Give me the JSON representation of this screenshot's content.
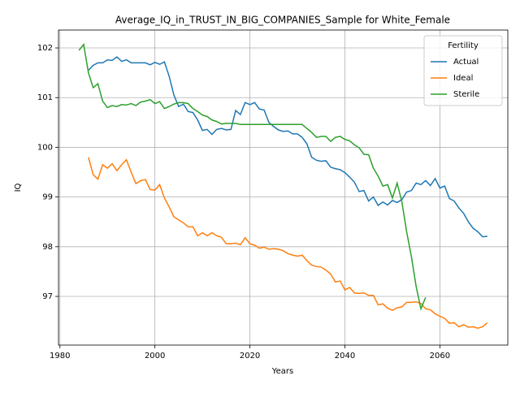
{
  "chart_data": {
    "type": "line",
    "title": "Average_IQ_in_TRUST_IN_BIG_COMPANIES_Sample for White_Female",
    "x_label": "Years",
    "y_label": "IQ",
    "legend_title": "Fertility",
    "legend_loc": "upper right",
    "grid": true,
    "xlim": [
      1979.7,
      2074.3
    ],
    "xticks": [
      1980,
      2000,
      2020,
      2040,
      2060
    ],
    "ylim": [
      96.02,
      102.36
    ],
    "yticks": [
      97,
      98,
      99,
      100,
      101,
      102
    ],
    "x": [
      1984,
      1985,
      1986,
      1987,
      1988,
      1989,
      1990,
      1991,
      1992,
      1993,
      1994,
      1995,
      1996,
      1997,
      1998,
      1999,
      2000,
      2001,
      2002,
      2003,
      2004,
      2005,
      2006,
      2007,
      2008,
      2009,
      2010,
      2011,
      2012,
      2013,
      2014,
      2015,
      2016,
      2017,
      2018,
      2019,
      2020,
      2021,
      2022,
      2023,
      2024,
      2025,
      2026,
      2027,
      2028,
      2029,
      2030,
      2031,
      2032,
      2033,
      2034,
      2035,
      2036,
      2037,
      2038,
      2039,
      2040,
      2041,
      2042,
      2043,
      2044,
      2045,
      2046,
      2047,
      2048,
      2049,
      2050,
      2051,
      2052,
      2053,
      2054,
      2055,
      2056,
      2057,
      2058,
      2059,
      2060,
      2061,
      2062,
      2063,
      2064,
      2065,
      2066,
      2067,
      2068,
      2069,
      2070
    ],
    "series": [
      {
        "name": "Actual",
        "color": "#1f77b4",
        "values": [
          null,
          null,
          101.55,
          101.65,
          101.7,
          101.7,
          101.76,
          101.75,
          101.82,
          101.73,
          101.76,
          101.7,
          101.7,
          101.7,
          101.7,
          101.66,
          101.71,
          101.67,
          101.72,
          101.43,
          101.05,
          100.82,
          100.87,
          100.72,
          100.7,
          100.55,
          100.34,
          100.36,
          100.26,
          100.36,
          100.38,
          100.35,
          100.36,
          100.74,
          100.66,
          100.9,
          100.86,
          100.9,
          100.77,
          100.75,
          100.5,
          100.42,
          100.35,
          100.32,
          100.33,
          100.27,
          100.27,
          100.2,
          100.07,
          99.8,
          99.74,
          99.72,
          99.73,
          99.6,
          99.57,
          99.55,
          99.49,
          99.4,
          99.3,
          99.11,
          99.13,
          98.92,
          99.0,
          98.83,
          98.9,
          98.84,
          98.93,
          98.89,
          98.95,
          99.1,
          99.13,
          99.28,
          99.25,
          99.33,
          99.23,
          99.37,
          99.18,
          99.22,
          98.97,
          98.92,
          98.78,
          98.67,
          98.5,
          98.37,
          98.3,
          98.2,
          98.21
        ]
      },
      {
        "name": "Ideal",
        "color": "#ff7f0e",
        "values": [
          null,
          null,
          99.8,
          99.45,
          99.36,
          99.65,
          99.58,
          99.67,
          99.53,
          99.65,
          99.75,
          99.5,
          99.27,
          99.33,
          99.35,
          99.15,
          99.14,
          99.25,
          98.98,
          98.8,
          98.6,
          98.54,
          98.48,
          98.4,
          98.4,
          98.22,
          98.28,
          98.22,
          98.28,
          98.22,
          98.19,
          98.06,
          98.06,
          98.07,
          98.04,
          98.18,
          98.06,
          98.03,
          97.97,
          97.99,
          97.95,
          97.96,
          97.95,
          97.92,
          97.86,
          97.83,
          97.81,
          97.83,
          97.72,
          97.63,
          97.6,
          97.59,
          97.53,
          97.45,
          97.29,
          97.31,
          97.13,
          97.18,
          97.07,
          97.06,
          97.07,
          97.02,
          97.02,
          96.83,
          96.85,
          96.76,
          96.72,
          96.77,
          96.79,
          96.88,
          96.88,
          96.89,
          96.86,
          96.75,
          96.73,
          96.65,
          96.6,
          96.56,
          96.46,
          96.47,
          96.39,
          96.43,
          96.38,
          96.39,
          96.36,
          96.39,
          96.47
        ]
      },
      {
        "name": "Sterile",
        "color": "#2ca02c",
        "values": [
          101.95,
          102.07,
          101.5,
          101.2,
          101.28,
          100.93,
          100.8,
          100.84,
          100.82,
          100.86,
          100.85,
          100.88,
          100.84,
          100.91,
          100.93,
          100.96,
          100.88,
          100.92,
          100.78,
          100.82,
          100.87,
          100.9,
          100.9,
          100.88,
          100.78,
          100.72,
          100.65,
          100.62,
          100.55,
          100.52,
          100.47,
          100.48,
          100.48,
          100.48,
          100.46,
          100.46,
          100.46,
          100.46,
          100.46,
          100.46,
          100.46,
          100.46,
          100.46,
          100.46,
          100.46,
          100.46,
          100.46,
          100.46,
          100.38,
          100.3,
          100.2,
          100.22,
          100.22,
          100.12,
          100.2,
          100.22,
          100.16,
          100.13,
          100.05,
          99.99,
          99.86,
          99.85,
          99.58,
          99.42,
          99.22,
          99.25,
          98.98,
          99.28,
          98.9,
          98.3,
          97.8,
          97.2,
          96.75,
          96.98,
          null,
          null,
          null,
          null,
          null,
          null,
          null,
          null,
          null,
          null,
          null,
          null,
          null
        ]
      }
    ]
  }
}
